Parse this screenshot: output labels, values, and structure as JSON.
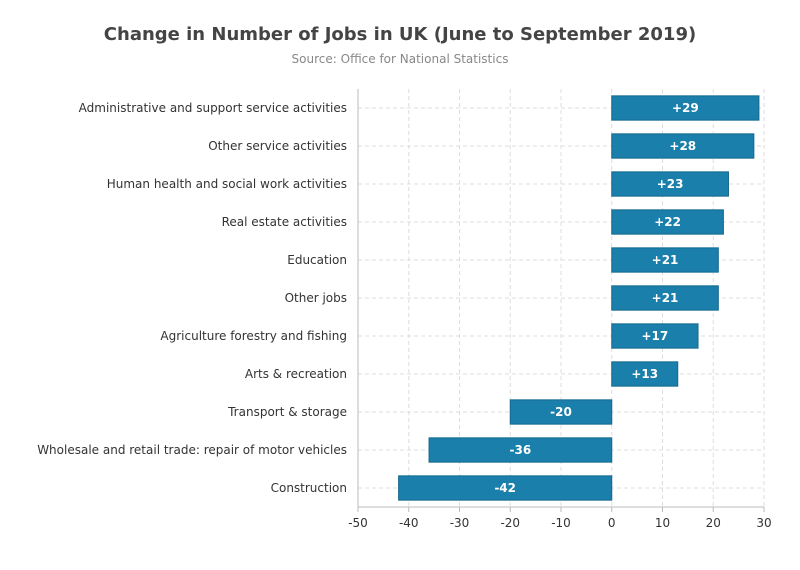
{
  "chart_data": {
    "type": "bar",
    "orientation": "horizontal",
    "title": "Change in Number of Jobs in UK (June to September 2019)",
    "subtitle": "Source: Office for National Statistics",
    "categories": [
      "Administrative and support service activities",
      "Other service activities",
      "Human health and social work activities",
      "Real estate activities",
      "Education",
      "Other jobs",
      "Agriculture forestry and fishing",
      "Arts & recreation",
      "Transport & storage",
      "Wholesale and retail trade: repair of motor vehicles",
      "Construction"
    ],
    "values": [
      29,
      28,
      23,
      22,
      21,
      21,
      17,
      13,
      -20,
      -36,
      -42
    ],
    "data_labels": [
      "+29",
      "+28",
      "+23",
      "+22",
      "+21",
      "+21",
      "+17",
      "+13",
      "-20",
      "-36",
      "-42"
    ],
    "xlim": [
      -50,
      30
    ],
    "xticks": [
      -50,
      -40,
      -30,
      -20,
      -10,
      0,
      10,
      20,
      30
    ],
    "grid": true,
    "bar_color": "#1a7fab",
    "bar_border_color": "#16698f"
  }
}
